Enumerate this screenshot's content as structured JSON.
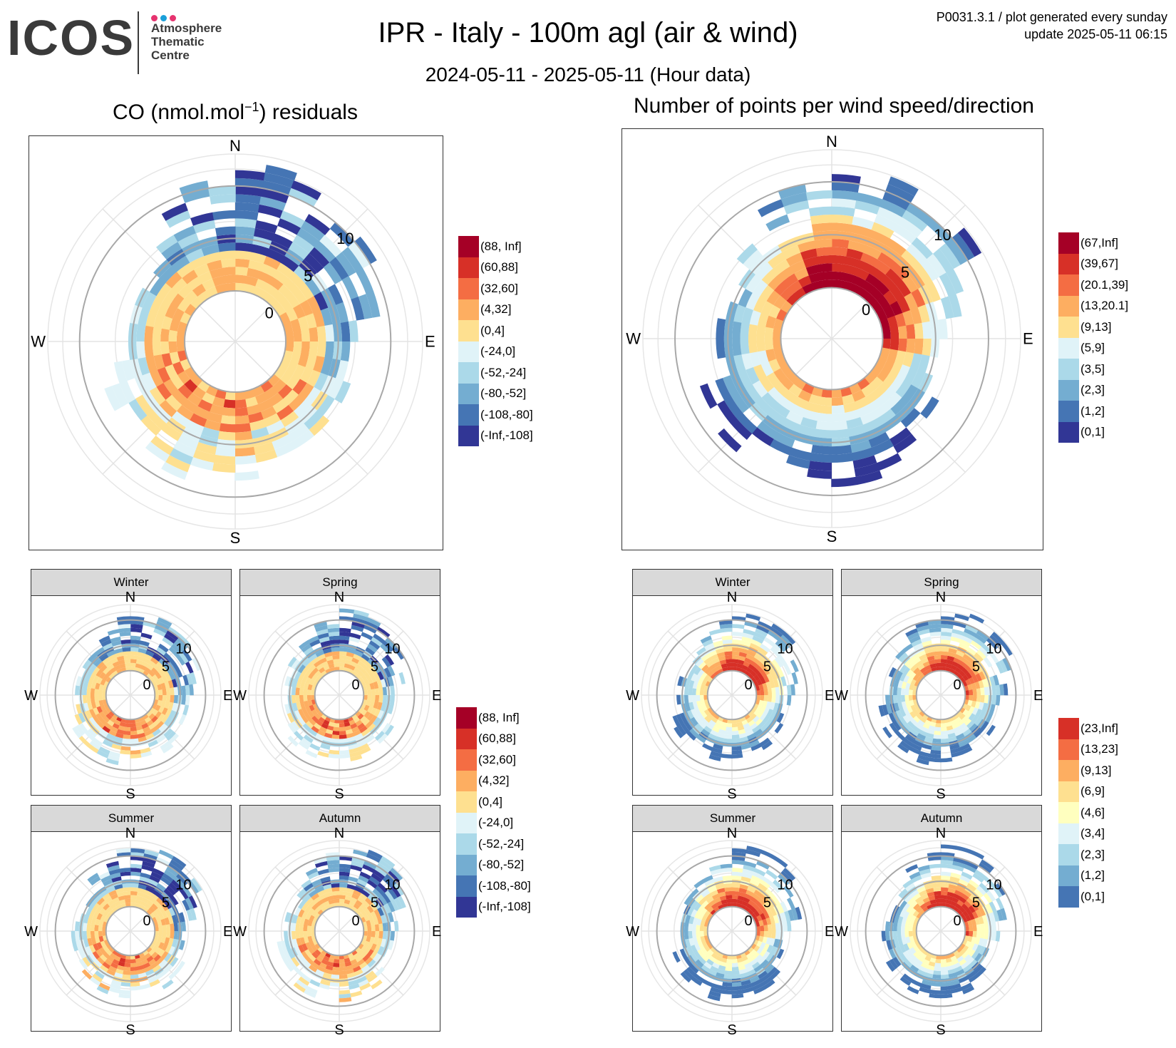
{
  "logo": {
    "text": "ICOS",
    "sub_lines": [
      "Atmosphere",
      "Thematic",
      "Centre"
    ],
    "dot_colors": [
      "#e6336f",
      "#1a9fd9",
      "#e6336f"
    ]
  },
  "title": "IPR - Italy - 100m agl (air & wind)",
  "subtitle": "2024-05-11 - 2025-05-11 (Hour data)",
  "meta": {
    "line1": "P0031.3.1 / plot generated every sunday",
    "line2": "update  2025-05-11 06:15"
  },
  "compass": {
    "n": "N",
    "e": "E",
    "s": "S",
    "w": "W"
  },
  "speed_labels": [
    "0",
    "5",
    "10"
  ],
  "seasons": [
    "Winter",
    "Spring",
    "Summer",
    "Autumn"
  ],
  "panels": {
    "residuals_title_pre": "CO (nmol.mol",
    "residuals_title_sup": "−1",
    "residuals_title_post": ") residuals",
    "counts_title": "Number of points per wind speed/direction"
  },
  "legends": {
    "residuals": {
      "labels": [
        "(88, Inf]",
        "(60,88]",
        "(32,60]",
        "(4,32]",
        "(0,4]",
        "(-24,0]",
        "(-52,-24]",
        "(-80,-52]",
        "(-108,-80]",
        "(-Inf,-108]"
      ],
      "colors": [
        "#a50026",
        "#d73027",
        "#f46d43",
        "#fdae61",
        "#fee090",
        "#e0f3f8",
        "#abd9e9",
        "#74add1",
        "#4575b4",
        "#313695"
      ]
    },
    "counts": {
      "labels": [
        "(67,Inf]",
        "(39,67]",
        "(20.1,39]",
        "(13,20.1]",
        "(9,13]",
        "(5,9]",
        "(3,5]",
        "(2,3]",
        "(1,2]",
        "(0,1]"
      ],
      "colors": [
        "#a50026",
        "#d73027",
        "#f46d43",
        "#fdae61",
        "#fee090",
        "#e0f3f8",
        "#abd9e9",
        "#74add1",
        "#4575b4",
        "#313695"
      ]
    },
    "counts_seasonal": {
      "labels": [
        "(23,Inf]",
        "(13,23]",
        "(9,13]",
        "(6,9]",
        "(4,6]",
        "(3,4]",
        "(2,3]",
        "(1,2]",
        "(0,1]"
      ],
      "colors": [
        "#d73027",
        "#f46d43",
        "#fdae61",
        "#fee090",
        "#ffffbf",
        "#e0f3f8",
        "#abd9e9",
        "#74add1",
        "#4575b4"
      ]
    }
  },
  "chart_data": [
    {
      "type": "heatmap",
      "kind": "polar",
      "title": "CO (nmol.mol−1) residuals",
      "subset": "all",
      "radial_axis": "wind speed",
      "angular_axis": "wind direction",
      "r_ticks": [
        0,
        5,
        10
      ],
      "legend": "residuals",
      "dominant_negative_sector": "N-NE",
      "dominant_positive_sector": "S-SE"
    },
    {
      "type": "heatmap",
      "kind": "polar",
      "title": "Number of points per wind speed/direction",
      "subset": "all",
      "radial_axis": "wind speed",
      "angular_axis": "wind direction",
      "r_ticks": [
        0,
        5,
        10
      ],
      "legend": "counts",
      "max_count_sector": "N"
    },
    {
      "type": "heatmap",
      "kind": "polar",
      "panel": "residuals",
      "subset": "Winter",
      "legend": "residuals"
    },
    {
      "type": "heatmap",
      "kind": "polar",
      "panel": "residuals",
      "subset": "Spring",
      "legend": "residuals"
    },
    {
      "type": "heatmap",
      "kind": "polar",
      "panel": "residuals",
      "subset": "Summer",
      "legend": "residuals"
    },
    {
      "type": "heatmap",
      "kind": "polar",
      "panel": "residuals",
      "subset": "Autumn",
      "legend": "residuals"
    },
    {
      "type": "heatmap",
      "kind": "polar",
      "panel": "counts",
      "subset": "Winter",
      "legend": "counts_seasonal"
    },
    {
      "type": "heatmap",
      "kind": "polar",
      "panel": "counts",
      "subset": "Spring",
      "legend": "counts_seasonal"
    },
    {
      "type": "heatmap",
      "kind": "polar",
      "panel": "counts",
      "subset": "Summer",
      "legend": "counts_seasonal"
    },
    {
      "type": "heatmap",
      "kind": "polar",
      "panel": "counts",
      "subset": "Autumn",
      "legend": "counts_seasonal"
    }
  ]
}
